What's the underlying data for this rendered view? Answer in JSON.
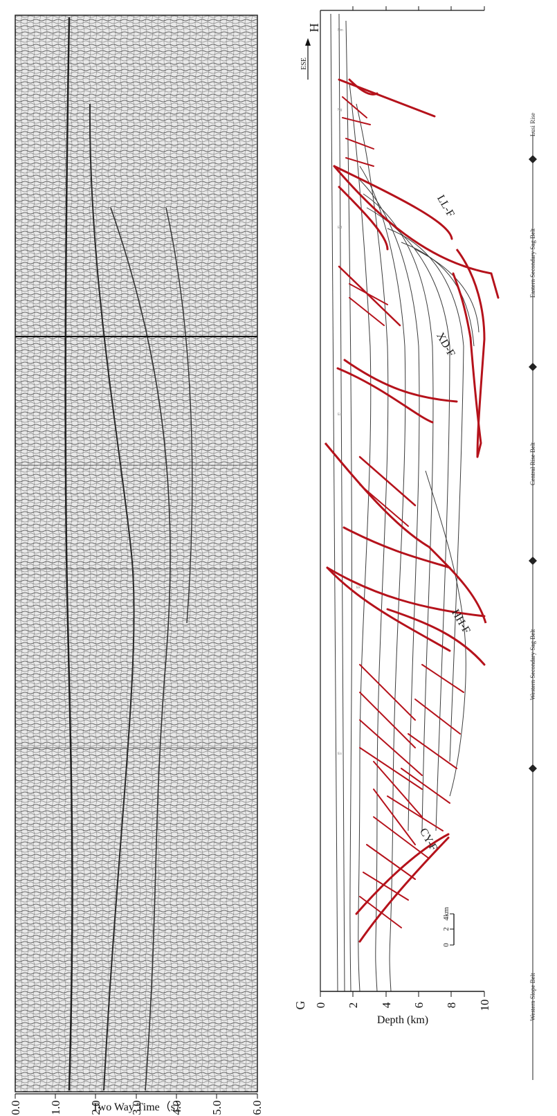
{
  "seismic_panel": {
    "time_ticks": [
      "0.0",
      "1.0",
      "2.0",
      "3.0",
      "4.0",
      "5.0",
      "6.0"
    ],
    "time_axis_label": "Two Way Time（s）"
  },
  "section_panel": {
    "endpoint_left": "G",
    "endpoint_right": "H",
    "depth_ticks": [
      "0",
      "2",
      "4",
      "6",
      "8",
      "10"
    ],
    "depth_axis_label": "Depth (km)",
    "direction_label": "ESE",
    "scale_bar": {
      "ticks": [
        "0",
        "2",
        "4km"
      ]
    },
    "fault_labels": [
      "LL-F",
      "XD-F",
      "HH-F",
      "CY-F"
    ]
  },
  "tectonic_belts": [
    "Western Slope Belt",
    "Western Secondary Sag Belt",
    "Central Rise Belt",
    "Eastern Secondary Sag Belt",
    "Lusi Rise"
  ],
  "colors": {
    "fault": "#b5121b",
    "horizon": "#333333",
    "seismic": "#555555"
  }
}
